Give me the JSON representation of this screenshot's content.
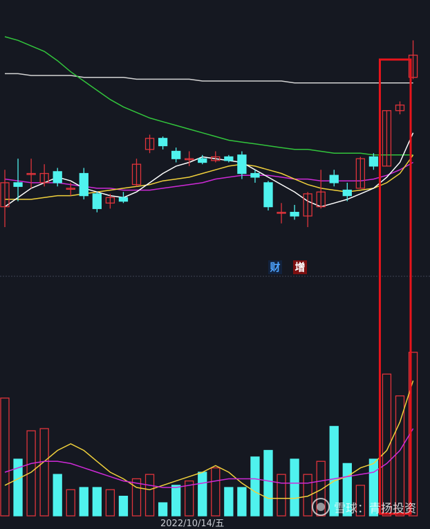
{
  "chart_data": {
    "type": "candlestick",
    "colors": {
      "up": "#e0343b",
      "down": "#4ff2ee",
      "ma5": "#ffffff",
      "ma10": "#f1d13c",
      "ma20": "#cf2ad8",
      "ma60": "#32c53c",
      "ma120": "#d4d4d4",
      "highlight_box": "#e8141b"
    },
    "price_range": [
      0,
      100
    ],
    "volume_range": [
      0,
      100
    ],
    "candles": [
      {
        "o": 20,
        "c": 33,
        "h": 40,
        "l": 9
      },
      {
        "o": 33,
        "c": 31,
        "h": 46,
        "l": 23
      },
      {
        "o": 38,
        "c": 38,
        "h": 46,
        "l": 30
      },
      {
        "o": 33,
        "c": 38,
        "h": 43,
        "l": 31
      },
      {
        "o": 39,
        "c": 33,
        "h": 41,
        "l": 31
      },
      {
        "o": 30,
        "c": 30,
        "h": 33,
        "l": 26
      },
      {
        "o": 38,
        "c": 26,
        "h": 41,
        "l": 24
      },
      {
        "o": 27,
        "c": 19,
        "h": 28,
        "l": 17
      },
      {
        "o": 22,
        "c": 25,
        "h": 27,
        "l": 19
      },
      {
        "o": 25,
        "c": 23,
        "h": 28,
        "l": 22
      },
      {
        "o": 32,
        "c": 43,
        "h": 46,
        "l": 31
      },
      {
        "o": 51,
        "c": 57,
        "h": 59,
        "l": 49
      },
      {
        "o": 57,
        "c": 53,
        "h": 58,
        "l": 51
      },
      {
        "o": 50,
        "c": 46,
        "h": 52,
        "l": 44
      },
      {
        "o": 46,
        "c": 46,
        "h": 50,
        "l": 42
      },
      {
        "o": 46,
        "c": 44,
        "h": 48,
        "l": 43
      },
      {
        "o": 45,
        "c": 47,
        "h": 50,
        "l": 44
      },
      {
        "o": 47,
        "c": 45,
        "h": 48,
        "l": 44
      },
      {
        "o": 48,
        "c": 38,
        "h": 50,
        "l": 35
      },
      {
        "o": 38,
        "c": 36,
        "h": 40,
        "l": 33
      },
      {
        "o": 33,
        "c": 20,
        "h": 34,
        "l": 18
      },
      {
        "o": 17,
        "c": 17,
        "h": 22,
        "l": 11
      },
      {
        "o": 17,
        "c": 15,
        "h": 21,
        "l": 13
      },
      {
        "o": 15,
        "c": 27,
        "h": 28,
        "l": 9
      },
      {
        "o": 20,
        "c": 28,
        "h": 40,
        "l": 19
      },
      {
        "o": 37,
        "c": 33,
        "h": 40,
        "l": 31
      },
      {
        "o": 29,
        "c": 26,
        "h": 33,
        "l": 23
      },
      {
        "o": 30,
        "c": 46,
        "h": 47,
        "l": 30
      },
      {
        "o": 47,
        "c": 42,
        "h": 49,
        "l": 40
      },
      {
        "o": 42,
        "c": 72,
        "h": 72,
        "l": 42
      },
      {
        "o": 72,
        "c": 75,
        "h": 77,
        "l": 70
      },
      {
        "o": 90,
        "c": 102,
        "h": 110,
        "l": 89
      }
    ],
    "ma5": [
      20,
      25,
      30,
      33,
      36,
      34,
      30,
      28,
      26,
      25,
      28,
      33,
      38,
      42,
      44,
      47,
      46,
      45,
      44,
      40,
      36,
      32,
      28,
      23,
      20,
      22,
      24,
      27,
      30,
      36,
      44,
      60
    ],
    "ma10": [
      24,
      24,
      24,
      25,
      26,
      26,
      27,
      28,
      29,
      30,
      31,
      32,
      34,
      35,
      36,
      38,
      40,
      42,
      43,
      42,
      40,
      38,
      35,
      32,
      30,
      29,
      28,
      29,
      30,
      33,
      38,
      48
    ],
    "ma20": [
      35,
      34,
      33,
      33,
      33,
      32,
      31,
      30,
      30,
      29,
      29,
      29,
      30,
      31,
      32,
      33,
      35,
      36,
      37,
      37,
      37,
      36,
      35,
      35,
      34,
      34,
      34,
      34,
      35,
      37,
      40,
      44
    ],
    "ma60": [
      112,
      110,
      107,
      104,
      99,
      93,
      88,
      83,
      78,
      74,
      71,
      68,
      66,
      64,
      62,
      60,
      58,
      56,
      55,
      54,
      53,
      52,
      51,
      51,
      50,
      49,
      49,
      49,
      48,
      48,
      48,
      48
    ],
    "ma120": [
      92,
      92,
      91,
      91,
      91,
      91,
      90,
      90,
      90,
      90,
      89,
      89,
      89,
      89,
      89,
      88,
      88,
      88,
      88,
      88,
      88,
      88,
      87,
      87,
      87,
      87,
      87,
      87,
      87,
      87,
      87,
      87
    ],
    "volume": [
      54,
      26,
      39,
      40,
      19,
      12,
      13,
      13,
      12,
      9,
      17,
      19,
      6,
      14,
      16,
      20,
      22,
      13,
      13,
      27,
      30,
      19,
      26,
      19,
      25,
      41,
      24,
      14,
      26,
      65,
      55,
      75
    ],
    "vol_ma5": [
      14,
      17,
      20,
      25,
      30,
      33,
      30,
      25,
      20,
      17,
      13,
      12,
      14,
      16,
      18,
      20,
      23,
      20,
      15,
      11,
      8,
      8,
      8,
      9,
      12,
      16,
      18,
      22,
      24,
      30,
      43,
      62
    ],
    "vol_ma10": [
      20,
      22,
      24,
      25,
      25,
      24,
      22,
      20,
      18,
      16,
      15,
      14,
      13,
      13,
      14,
      15,
      16,
      17,
      17,
      17,
      16,
      15,
      15,
      15,
      16,
      17,
      18,
      19,
      20,
      24,
      30,
      40
    ],
    "highlight_from_index": 29
  },
  "tags": {
    "cai": "财",
    "zeng": "增"
  },
  "watermark": {
    "text": "雪球：青扬投资"
  },
  "date_label": "2022/10/14/五"
}
